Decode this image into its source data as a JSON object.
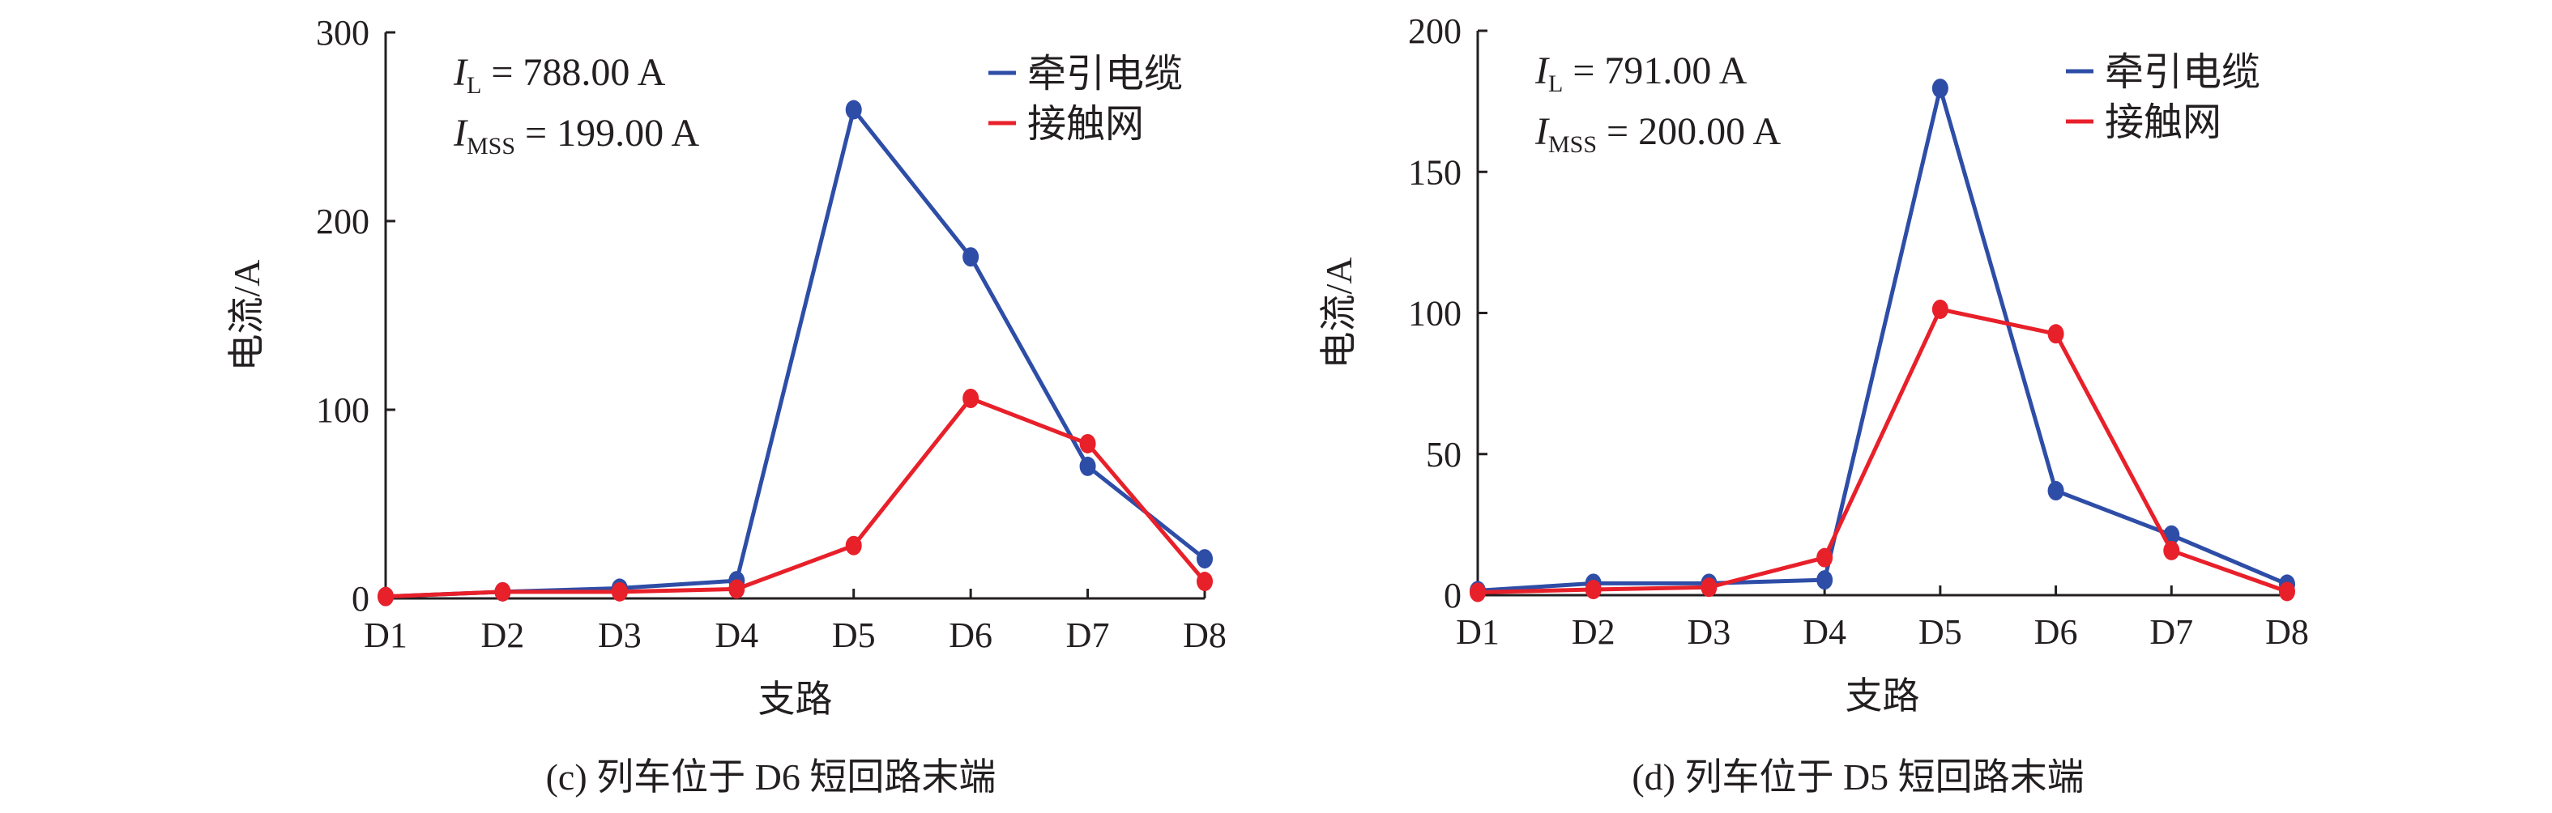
{
  "chart_data": [
    {
      "type": "line",
      "caption": "(c) 列车位于 D6 短回路末端",
      "xlabel": "支路",
      "ylabel": "电流/A",
      "categories": [
        "D1",
        "D2",
        "D3",
        "D4",
        "D5",
        "D6",
        "D7",
        "D8"
      ],
      "ylim": [
        0,
        300
      ],
      "yticks": [
        0,
        100,
        200,
        300
      ],
      "annotation": {
        "IL_sym": "I",
        "IL_sub": "L",
        "IL_value": " = 788.00 A",
        "IMSS_sym": "I",
        "IMSS_sub": "MSS",
        "IMSS_value": " = 199.00 A"
      },
      "legend_position": "top-right",
      "series": [
        {
          "name": "牵引电缆",
          "color": "#2e4da7",
          "values": [
            1,
            3.5,
            5.4,
            9.4,
            259,
            181,
            70,
            21
          ]
        },
        {
          "name": "接触网",
          "color": "#e8202a",
          "values": [
            1,
            3.5,
            3.5,
            5,
            28,
            106,
            82,
            9
          ]
        }
      ]
    },
    {
      "type": "line",
      "caption": "(d) 列车位于 D5 短回路末端",
      "xlabel": "支路",
      "ylabel": "电流/A",
      "categories": [
        "D1",
        "D2",
        "D3",
        "D4",
        "D5",
        "D6",
        "D7",
        "D8"
      ],
      "ylim": [
        0,
        200
      ],
      "yticks": [
        0,
        50,
        100,
        150,
        200
      ],
      "annotation": {
        "IL_sym": "I",
        "IL_sub": "L",
        "IL_value": " = 791.00 A",
        "IMSS_sym": "I",
        "IMSS_sub": "MSS",
        "IMSS_value": " = 200.00 A"
      },
      "legend_position": "top-right",
      "series": [
        {
          "name": "牵引电缆",
          "color": "#2e4da7",
          "values": [
            1.6,
            4.2,
            4.2,
            5.4,
            179.6,
            37,
            21.3,
            3.9
          ]
        },
        {
          "name": "接触网",
          "color": "#e8202a",
          "values": [
            1,
            2,
            2.8,
            13.3,
            101.3,
            92.6,
            15.8,
            1.3
          ]
        }
      ]
    }
  ]
}
